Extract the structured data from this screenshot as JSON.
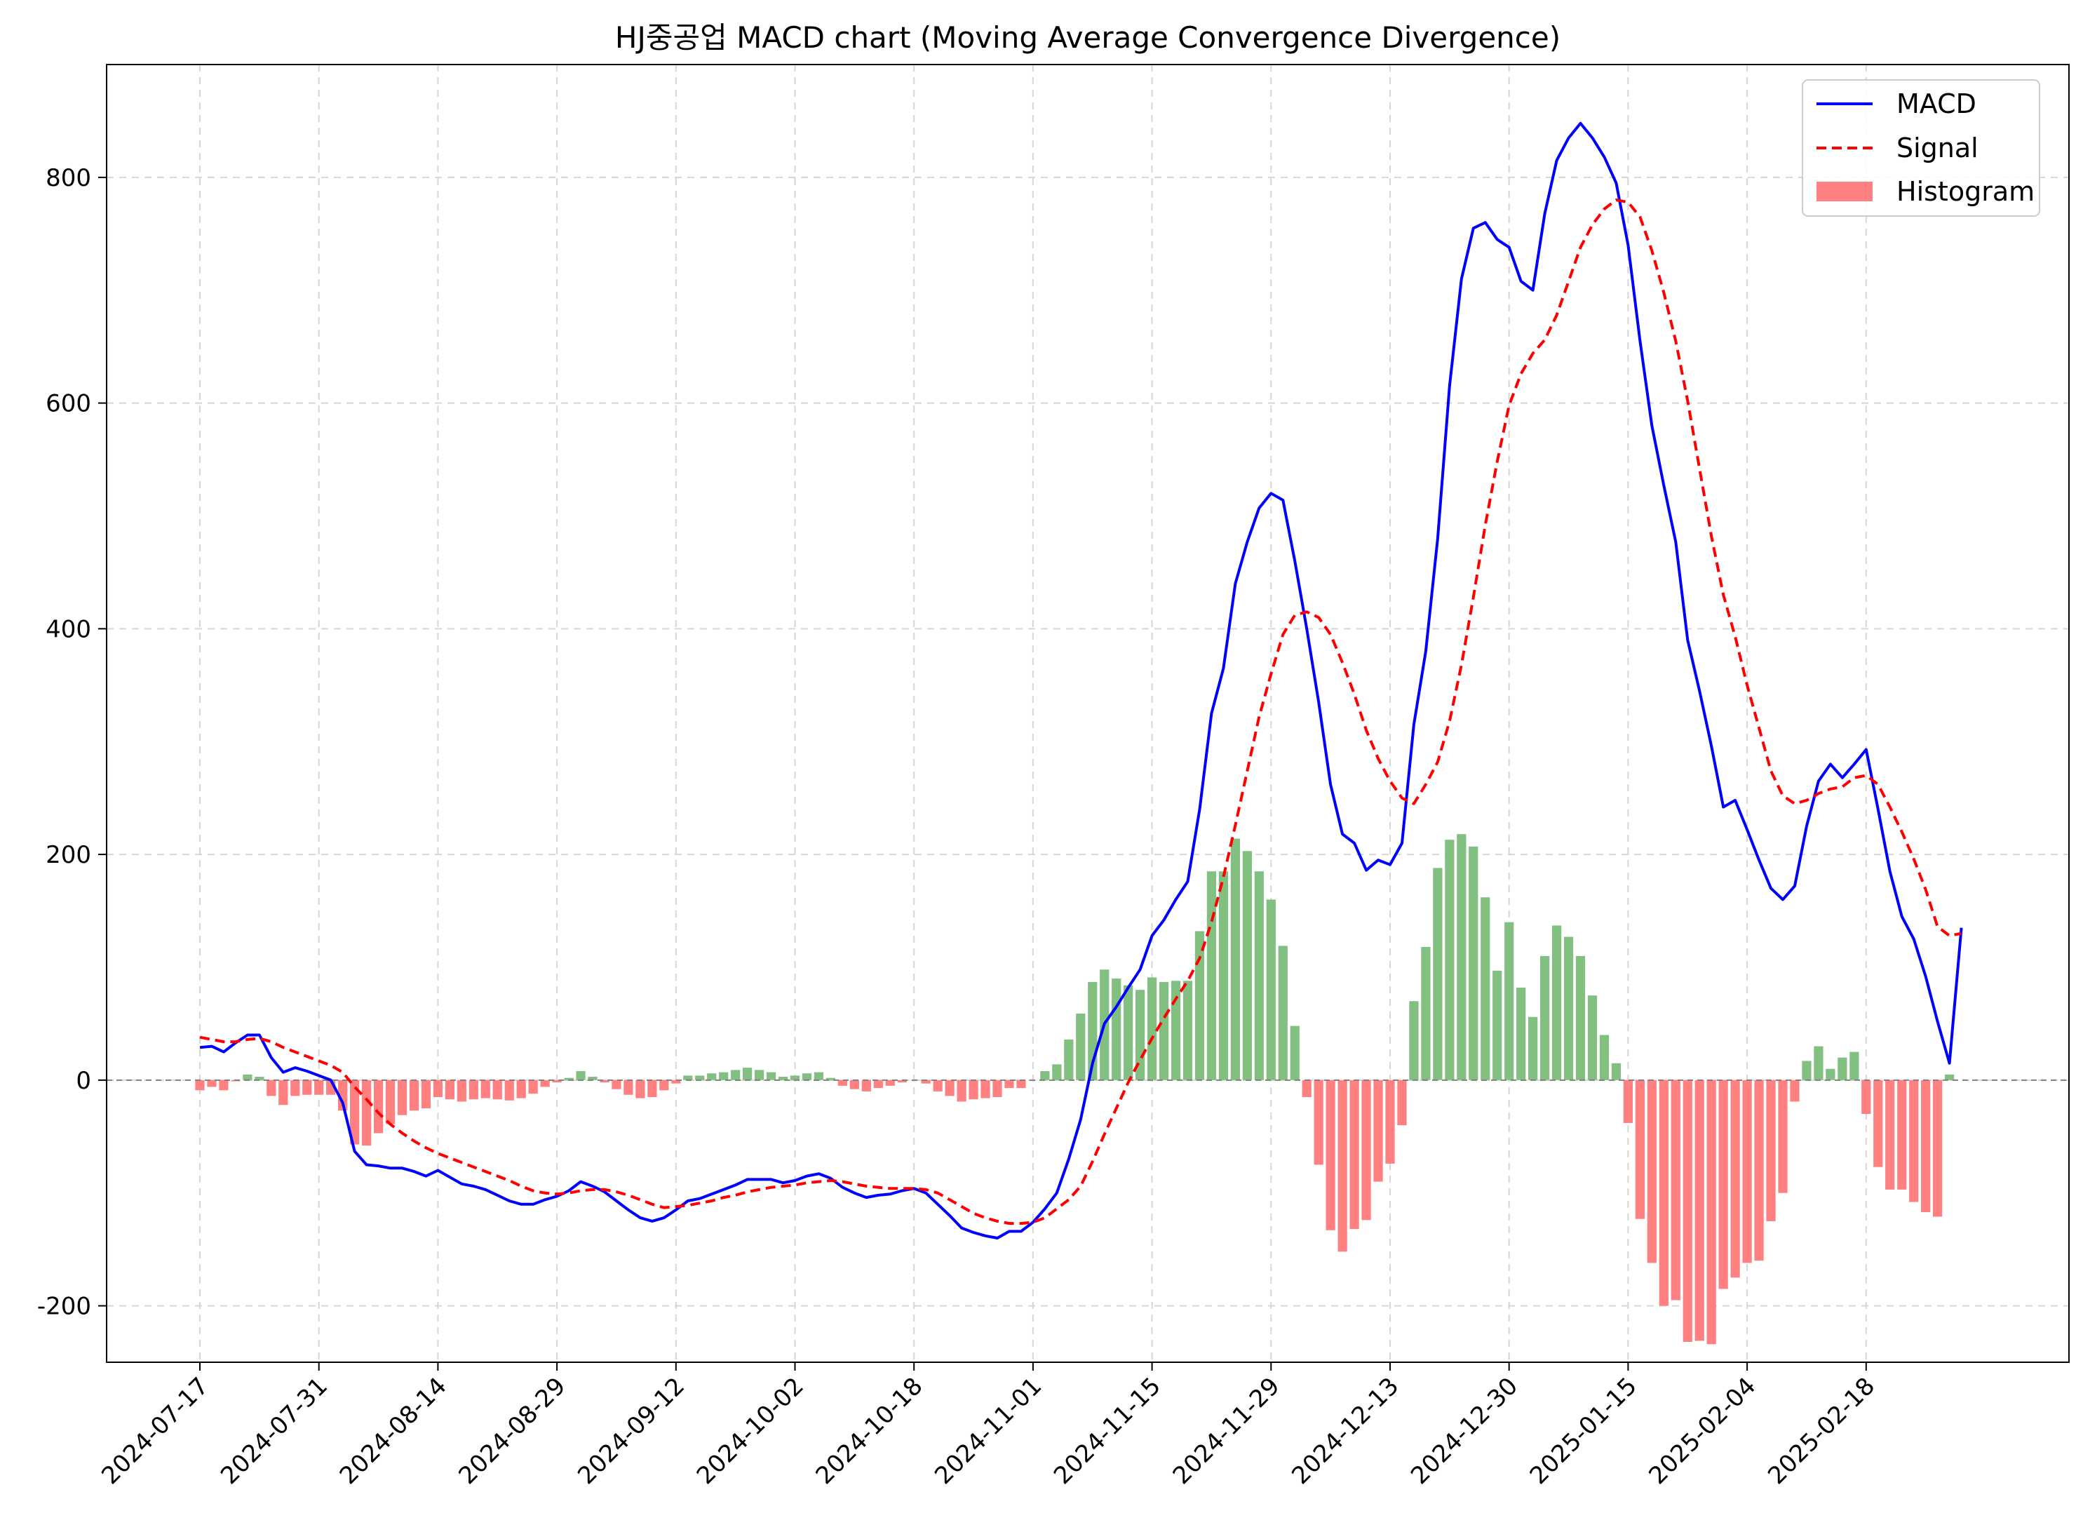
{
  "chart_data": {
    "type": "line",
    "title": "HJ중공업 MACD chart (Moving Average Convergence Divergence)",
    "xlabel": "",
    "ylabel": "",
    "ylim": [
      -250,
      900
    ],
    "yticks": [
      -200,
      0,
      200,
      400,
      600,
      800
    ],
    "grid": true,
    "legend_position": "top-right",
    "x_tick_labels": [
      "2024-07-17",
      "2024-07-31",
      "2024-08-14",
      "2024-08-29",
      "2024-09-12",
      "2024-10-02",
      "2024-10-18",
      "2024-11-01",
      "2024-11-15",
      "2024-11-29",
      "2024-12-13",
      "2024-12-30",
      "2025-01-15",
      "2025-02-04",
      "2025-02-18"
    ],
    "x_tick_indices": [
      0,
      10,
      20,
      30,
      40,
      50,
      60,
      70,
      80,
      90,
      100,
      110,
      120,
      130,
      140
    ],
    "colors": {
      "macd": "#0000ff",
      "signal": "#ff0000",
      "hist_pos": "#82c082",
      "hist_neg": "#ff8080",
      "zero_line": "#808080",
      "grid": "#d6d6d6"
    },
    "series": [
      {
        "name": "MACD",
        "style": "solid",
        "values": [
          29,
          30,
          25,
          33,
          40,
          40,
          20,
          7,
          11,
          8,
          4,
          0,
          -20,
          -63,
          -75,
          -76,
          -78,
          -78,
          -81,
          -85,
          -80,
          -86,
          -92,
          -94,
          -97,
          -102,
          -107,
          -110,
          -110,
          -106,
          -103,
          -98,
          -90,
          -94,
          -99,
          -107,
          -115,
          -122,
          -125,
          -122,
          -115,
          -107,
          -105,
          -101,
          -97,
          -93,
          -88,
          -88,
          -88,
          -91,
          -89,
          -85,
          -83,
          -87,
          -95,
          -100,
          -104,
          -102,
          -101,
          -98,
          -96,
          -100,
          -110,
          -120,
          -131,
          -135,
          -138,
          -140,
          -134,
          -134,
          -126,
          -114,
          -100,
          -70,
          -35,
          15,
          50,
          65,
          82,
          98,
          128,
          142,
          160,
          176,
          240,
          325,
          365,
          440,
          477,
          507,
          520,
          514,
          460,
          400,
          335,
          262,
          218,
          210,
          186,
          195,
          191,
          210,
          315,
          380,
          480,
          615,
          710,
          755,
          760,
          745,
          738,
          708,
          700,
          768,
          815,
          835,
          848,
          835,
          818,
          795,
          740,
          655,
          580,
          527,
          477,
          390,
          345,
          296,
          242,
          248,
          222,
          195,
          170,
          160,
          172,
          225,
          265,
          280,
          268,
          280,
          293,
          240,
          185,
          145,
          125,
          92,
          52,
          15,
          135
        ]
      },
      {
        "name": "Signal",
        "style": "dashed",
        "values": [
          38,
          36,
          34,
          34,
          36,
          37,
          34,
          29,
          25,
          21,
          17,
          13,
          7,
          -6,
          -17,
          -29,
          -39,
          -47,
          -54,
          -60,
          -65,
          -69,
          -73,
          -77,
          -81,
          -85,
          -89,
          -94,
          -98,
          -100,
          -101,
          -100,
          -98,
          -97,
          -97,
          -99,
          -102,
          -106,
          -110,
          -113,
          -112,
          -111,
          -109,
          -107,
          -104,
          -102,
          -99,
          -97,
          -95,
          -94,
          -93,
          -91,
          -90,
          -89,
          -90,
          -92,
          -94,
          -95,
          -96,
          -96,
          -96,
          -97,
          -100,
          -106,
          -112,
          -118,
          -122,
          -125,
          -127,
          -127,
          -126,
          -122,
          -114,
          -106,
          -94,
          -72,
          -48,
          -25,
          -2,
          18,
          37,
          55,
          72,
          88,
          108,
          140,
          180,
          226,
          274,
          322,
          360,
          395,
          412,
          415,
          410,
          395,
          370,
          342,
          310,
          285,
          265,
          250,
          245,
          262,
          282,
          318,
          368,
          428,
          492,
          548,
          598,
          626,
          644,
          656,
          678,
          708,
          738,
          758,
          772,
          780,
          778,
          765,
          735,
          698,
          655,
          602,
          542,
          482,
          430,
          393,
          350,
          312,
          274,
          252,
          245,
          248,
          254,
          258,
          260,
          268,
          270,
          262,
          242,
          220,
          196,
          169,
          136,
          128,
          130
        ]
      }
    ],
    "histogram": {
      "name": "Histogram",
      "values": [
        -9,
        -6,
        -9,
        -1,
        5,
        3,
        -14,
        -22,
        -14,
        -13,
        -13,
        -13,
        -27,
        -57,
        -58,
        -47,
        -39,
        -31,
        -27,
        -25,
        -15,
        -17,
        -19,
        -17,
        -16,
        -17,
        -18,
        -16,
        -12,
        -6,
        -2,
        2,
        8,
        3,
        -2,
        -8,
        -13,
        -16,
        -15,
        -9,
        -3,
        4,
        4,
        6,
        7,
        9,
        11,
        9,
        7,
        3,
        4,
        6,
        7,
        2,
        -5,
        -8,
        -10,
        -7,
        -5,
        -2,
        0,
        -3,
        -10,
        -14,
        -19,
        -17,
        -16,
        -15,
        -7,
        -7,
        0,
        8,
        14,
        36,
        59,
        87,
        98,
        90,
        84,
        80,
        91,
        87,
        88,
        88,
        132,
        185,
        185,
        214,
        203,
        185,
        160,
        119,
        48,
        -15,
        -75,
        -133,
        -152,
        -132,
        -124,
        -90,
        -74,
        -40,
        70,
        118,
        188,
        213,
        218,
        207,
        162,
        97,
        140,
        82,
        56,
        110,
        137,
        127,
        110,
        75,
        40,
        15,
        -38,
        -123,
        -162,
        -200,
        -195,
        -232,
        -231,
        -234,
        -185,
        -175,
        -162,
        -160,
        -125,
        -100,
        -19,
        17,
        30,
        10,
        20,
        25,
        -30,
        -77,
        -97,
        -97,
        -108,
        -117,
        -121,
        5
      ]
    }
  },
  "legend": {
    "items": [
      "MACD",
      "Signal",
      "Histogram"
    ]
  }
}
